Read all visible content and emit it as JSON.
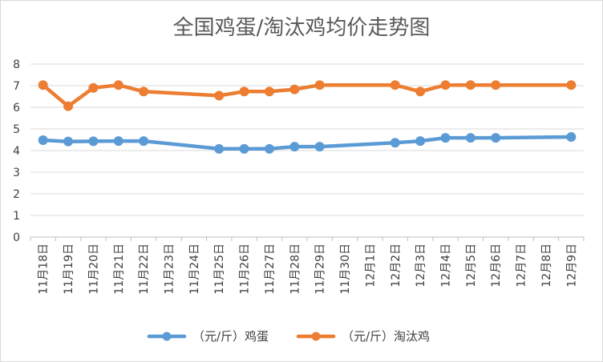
{
  "chart_data": {
    "type": "line",
    "title": "全国鸡蛋/淘汰鸡均价走势图",
    "categories": [
      "11月18日",
      "11月19日",
      "11月20日",
      "11月21日",
      "11月22日",
      "11月23日",
      "11月24日",
      "11月25日",
      "11月26日",
      "11月27日",
      "11月28日",
      "11月29日",
      "11月30日",
      "12月1日",
      "12月2日",
      "12月3日",
      "12月4日",
      "12月5日",
      "12月6日",
      "12月7日",
      "12月8日",
      "12月9日"
    ],
    "y_ticks": [
      "0",
      "1",
      "2",
      "3",
      "4",
      "5",
      "6",
      "7",
      "8"
    ],
    "ylim": [
      0,
      8
    ],
    "grid": true,
    "legend_position": "bottom",
    "series": [
      {
        "name": "（元/斤）鸡蛋",
        "color": "#5b9bd5",
        "values": [
          4.48,
          4.42,
          4.43,
          4.44,
          4.44,
          null,
          null,
          4.08,
          4.08,
          4.08,
          4.18,
          4.18,
          null,
          null,
          4.36,
          4.44,
          4.59,
          4.59,
          4.59,
          null,
          null,
          4.63
        ]
      },
      {
        "name": "（元/斤）淘汰鸡",
        "color": "#ed7d31",
        "values": [
          7.03,
          6.05,
          6.9,
          7.03,
          6.73,
          null,
          null,
          6.54,
          6.73,
          6.73,
          6.83,
          7.03,
          null,
          null,
          7.03,
          6.73,
          7.03,
          7.03,
          7.03,
          null,
          null,
          7.03
        ]
      }
    ]
  }
}
